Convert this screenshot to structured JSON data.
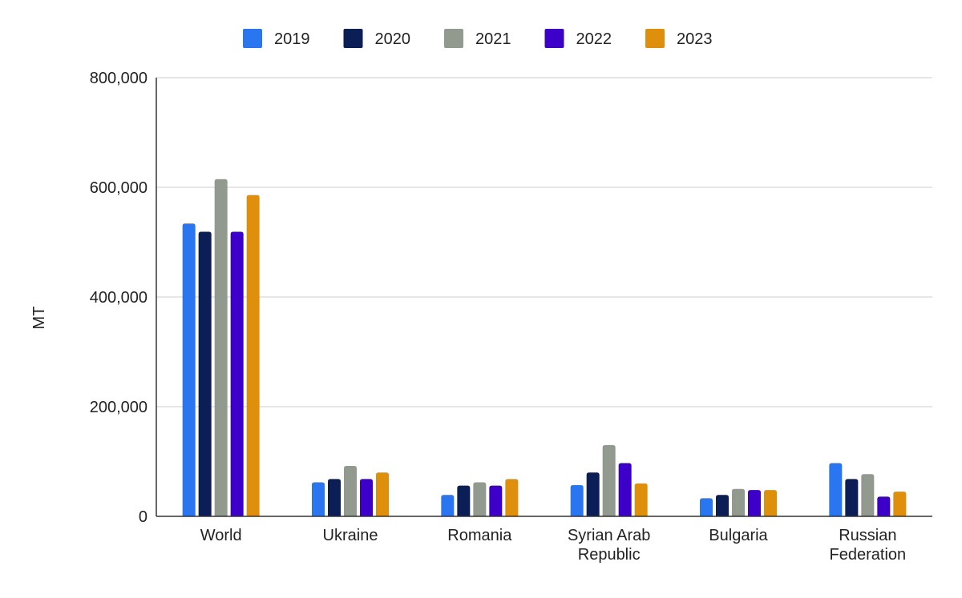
{
  "chart_data": {
    "type": "bar",
    "title": "",
    "xlabel": "",
    "ylabel": "MT",
    "ylim": [
      0,
      800000
    ],
    "yticks": [
      0,
      200000,
      400000,
      600000,
      800000
    ],
    "ytick_labels": [
      "0",
      "200,000",
      "400,000",
      "600,000",
      "800,000"
    ],
    "grid": true,
    "legend_position": "top",
    "categories": [
      [
        "World"
      ],
      [
        "Ukraine"
      ],
      [
        "Romania"
      ],
      [
        "Syrian Arab",
        "Republic"
      ],
      [
        "Bulgaria"
      ],
      [
        "Russian",
        "Federation"
      ]
    ],
    "series": [
      {
        "name": "2019",
        "color": "#2a75f0",
        "values": [
          534000,
          62000,
          39000,
          57000,
          33000,
          97000
        ]
      },
      {
        "name": "2020",
        "color": "#0b1f56",
        "values": [
          519000,
          68000,
          56000,
          80000,
          39000,
          68000
        ]
      },
      {
        "name": "2021",
        "color": "#929a90",
        "values": [
          615000,
          92000,
          62000,
          130000,
          50000,
          77000
        ]
      },
      {
        "name": "2022",
        "color": "#3c00c8",
        "values": [
          519000,
          68000,
          56000,
          97000,
          48000,
          36000
        ]
      },
      {
        "name": "2023",
        "color": "#de900c",
        "values": [
          586000,
          80000,
          68000,
          60000,
          48000,
          45000
        ]
      }
    ]
  }
}
